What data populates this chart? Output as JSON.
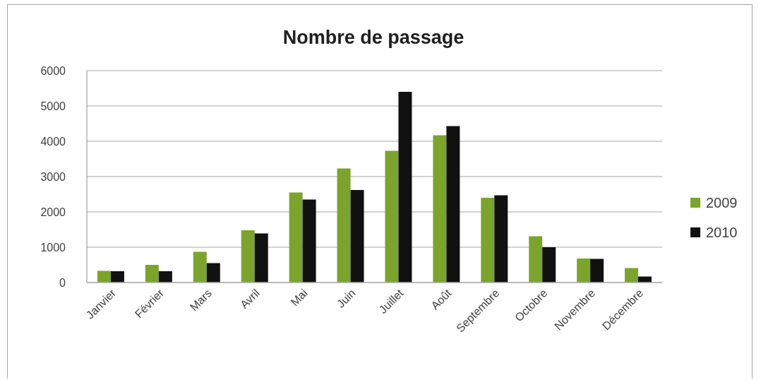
{
  "chart_data": {
    "type": "bar",
    "title": "Nombre de passage",
    "categories": [
      "Janvier",
      "Février",
      "Mars",
      "Avril",
      "Mai",
      "Juin",
      "Juillet",
      "Août",
      "Septembre",
      "Octobre",
      "Novembre",
      "Décembre"
    ],
    "series": [
      {
        "name": "2009",
        "color": "#7aa52a",
        "values": [
          330,
          500,
          870,
          1480,
          2550,
          3230,
          3730,
          4170,
          2400,
          1310,
          680,
          410
        ]
      },
      {
        "name": "2010",
        "color": "#111111",
        "values": [
          320,
          320,
          550,
          1390,
          2350,
          2620,
          5400,
          4430,
          2470,
          1000,
          670,
          170
        ]
      }
    ],
    "ylim": [
      0,
      6000
    ],
    "yticks": [
      0,
      1000,
      2000,
      3000,
      4000,
      5000,
      6000
    ],
    "grid": "y",
    "legend": "right"
  }
}
